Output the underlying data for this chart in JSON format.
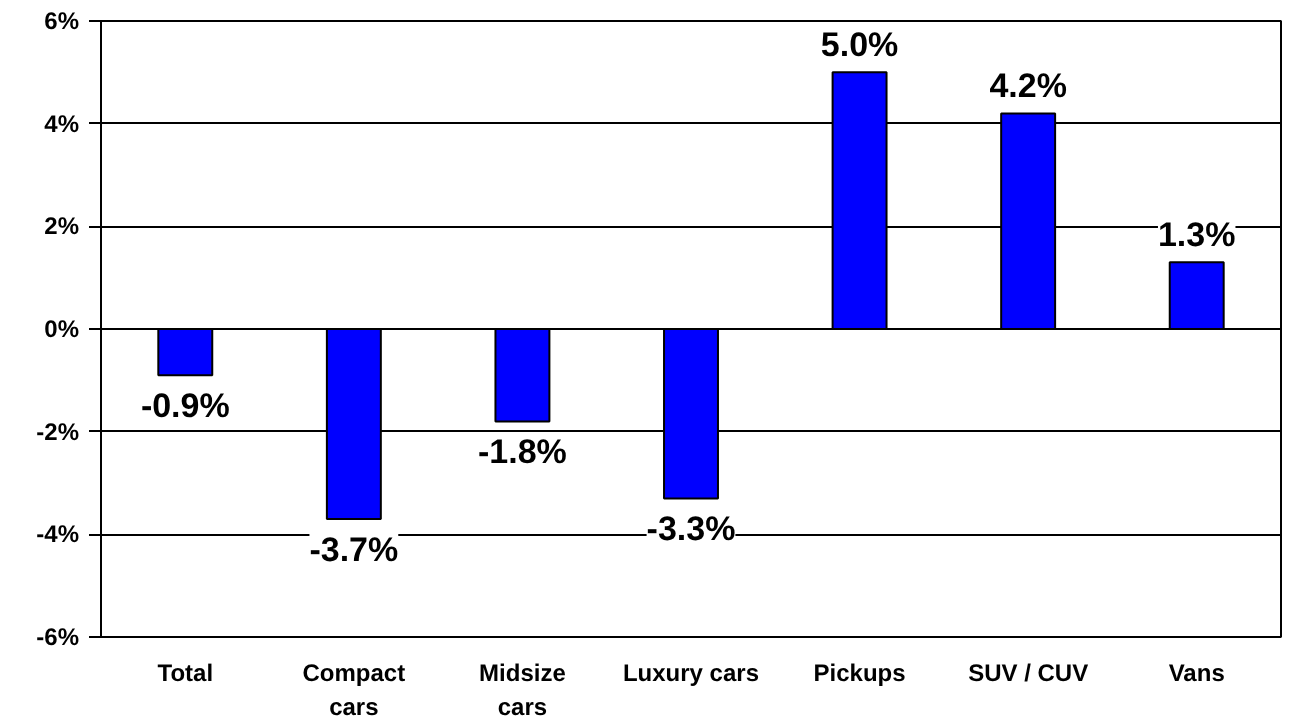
{
  "chart_data": {
    "type": "bar",
    "categories": [
      "Total",
      "Compact\ncars",
      "Midsize\ncars",
      "Luxury cars",
      "Pickups",
      "SUV / CUV",
      "Vans"
    ],
    "values": [
      -0.9,
      -3.7,
      -1.8,
      -3.3,
      5.0,
      4.2,
      1.3
    ],
    "value_labels": [
      "-0.9%",
      "-3.7%",
      "-1.8%",
      "-3.3%",
      "5.0%",
      "4.2%",
      "1.3%"
    ],
    "color": "#0000ff",
    "ylim": [
      -6,
      6
    ],
    "yticks": [
      {
        "value": -6,
        "label": "-6%"
      },
      {
        "value": -4,
        "label": "-4%"
      },
      {
        "value": -2,
        "label": "-2%"
      },
      {
        "value": 0,
        "label": "0%"
      },
      {
        "value": 2,
        "label": "2%"
      },
      {
        "value": 4,
        "label": "4%"
      },
      {
        "value": 6,
        "label": "6%"
      }
    ],
    "grid": "y"
  }
}
